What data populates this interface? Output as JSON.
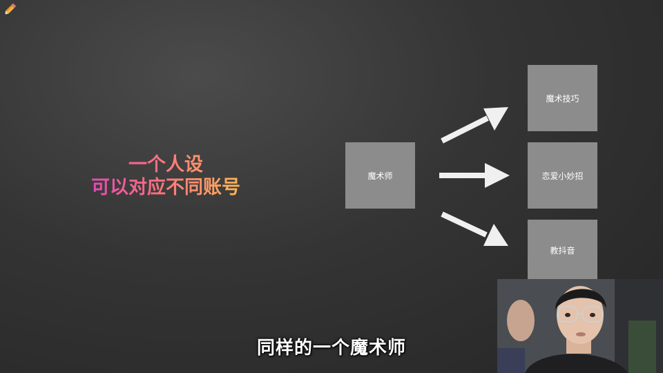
{
  "headline": {
    "line1": "一个人设",
    "line2": "可以对应不同账号"
  },
  "diagram": {
    "source": "魔术师",
    "targets": [
      "魔术技巧",
      "恋爱小妙招",
      "教抖音"
    ]
  },
  "subtitle": "同样的一个魔术师",
  "colors": {
    "box": "#8c8c8c",
    "arrow": "#f0f0f0",
    "gradient_start": "#d93cc4",
    "gradient_end": "#ffc94a"
  },
  "icons": {
    "corner": "pencil-icon"
  }
}
